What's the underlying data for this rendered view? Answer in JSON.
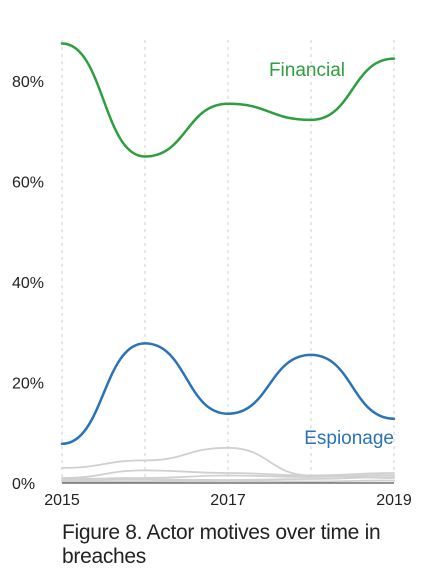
{
  "caption": "Figure 8. Actor motives over time in breaches",
  "chart_data": {
    "type": "line",
    "title": "",
    "xlabel": "",
    "ylabel": "",
    "x": [
      2015,
      2016,
      2017,
      2018,
      2019
    ],
    "x_ticks": [
      2015,
      2017,
      2019
    ],
    "x_tick_labels": [
      "2015",
      "2017",
      "2019"
    ],
    "ylim": [
      0,
      0.88
    ],
    "y_ticks": [
      0,
      0.2,
      0.4,
      0.6,
      0.8
    ],
    "y_tick_labels": [
      "0%",
      "20%",
      "40%",
      "60%",
      "80%"
    ],
    "grid": "vertical dashed at each year",
    "legend": "none (direct labels)",
    "series": [
      {
        "name": "Financial",
        "color": "#2e9e3f",
        "values": [
          0.875,
          0.65,
          0.755,
          0.723,
          0.845
        ]
      },
      {
        "name": "Espionage",
        "color": "#2b73b6",
        "values": [
          0.078,
          0.278,
          0.138,
          0.255,
          0.128
        ]
      },
      {
        "color": "#d0d0d0",
        "values": [
          0.03,
          0.045,
          0.07,
          0.015,
          0.01
        ]
      },
      {
        "color": "#d0d0d0",
        "values": [
          0.01,
          0.025,
          0.02,
          0.015,
          0.02
        ]
      },
      {
        "color": "#d0d0d0",
        "values": [
          0.008,
          0.01,
          0.015,
          0.012,
          0.016
        ]
      },
      {
        "color": "#d0d0d0",
        "values": [
          0.005,
          0.007,
          0.006,
          0.008,
          0.012
        ]
      },
      {
        "color": "#d0d0d0",
        "values": [
          0.002,
          0.003,
          0.004,
          0.003,
          0.005
        ]
      }
    ]
  }
}
